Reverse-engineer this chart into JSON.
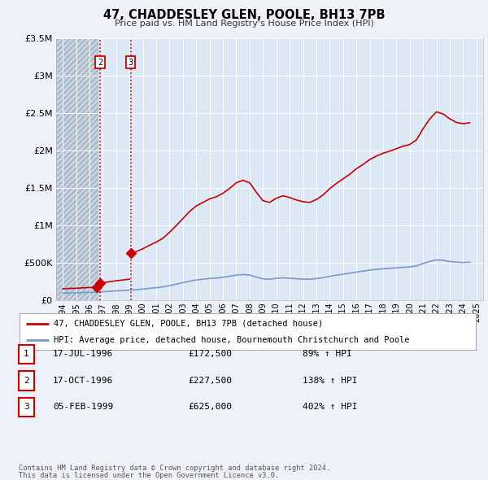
{
  "title": "47, CHADDESLEY GLEN, POOLE, BH13 7PB",
  "subtitle": "Price paid vs. HM Land Registry's House Price Index (HPI)",
  "background_color": "#eef2f8",
  "plot_bg_color": "#dce8f5",
  "hatch_region_end": 1996.58,
  "hpi_line_color": "#7799cc",
  "price_line_color": "#cc0000",
  "price_line_label": "47, CHADDESLEY GLEN, POOLE, BH13 7PB (detached house)",
  "hpi_line_label": "HPI: Average price, detached house, Bournemouth Christchurch and Poole",
  "ylim": [
    0,
    3500000
  ],
  "yticks": [
    0,
    500000,
    1000000,
    1500000,
    2000000,
    2500000,
    3000000,
    3500000
  ],
  "ytick_labels": [
    "£0",
    "£500K",
    "£1M",
    "£1.5M",
    "£2M",
    "£2.5M",
    "£3M",
    "£3.5M"
  ],
  "xlim": [
    1993.5,
    2025.5
  ],
  "xticks": [
    1994,
    1995,
    1996,
    1997,
    1998,
    1999,
    2000,
    2001,
    2002,
    2003,
    2004,
    2005,
    2006,
    2007,
    2008,
    2009,
    2010,
    2011,
    2012,
    2013,
    2014,
    2015,
    2016,
    2017,
    2018,
    2019,
    2020,
    2021,
    2022,
    2023,
    2024,
    2025
  ],
  "trans_vline_dates": [
    1996.79,
    1999.09
  ],
  "trans_label_boxes": [
    {
      "label": "2",
      "x": 1996.79
    },
    {
      "label": "3",
      "x": 1999.09
    }
  ],
  "trans1_x": 1996.54,
  "trans1_y": 172500,
  "trans2_x": 1996.79,
  "trans2_y": 227500,
  "trans3_x": 1999.09,
  "trans3_y": 625000,
  "footer_line1": "Contains HM Land Registry data © Crown copyright and database right 2024.",
  "footer_line2": "This data is licensed under the Open Government Licence v3.0.",
  "table_rows": [
    {
      "num": "1",
      "date": "17-JUL-1996",
      "price": "£172,500",
      "hpi": "89% ↑ HPI"
    },
    {
      "num": "2",
      "date": "17-OCT-1996",
      "price": "£227,500",
      "hpi": "138% ↑ HPI"
    },
    {
      "num": "3",
      "date": "05-FEB-1999",
      "price": "£625,000",
      "hpi": "402% ↑ HPI"
    }
  ]
}
